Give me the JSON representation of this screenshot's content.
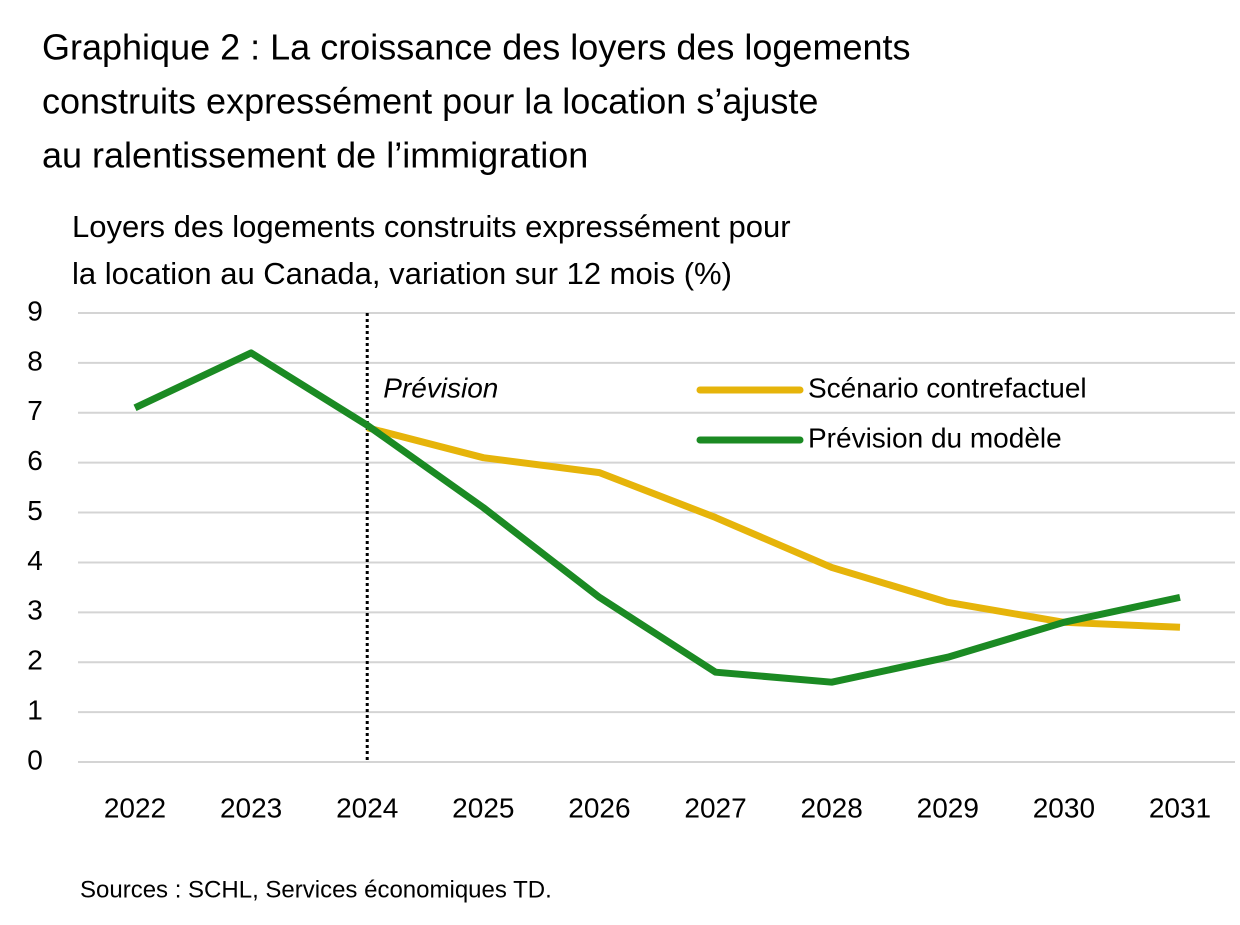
{
  "chart_data": {
    "type": "line",
    "title": [
      "Graphique 2 : La croissance des loyers des logements",
      "construits expressément pour la location s’ajuste",
      "au ralentissement de l’immigration"
    ],
    "y_label": [
      "Loyers des logements construits expressément pour",
      "la location au Canada, variation sur 12 mois (%)"
    ],
    "source": "Sources : SCHL, Services économiques TD.",
    "categories": [
      "2022",
      "2023",
      "2024",
      "2025",
      "2026",
      "2027",
      "2028",
      "2029",
      "2030",
      "2031"
    ],
    "series": [
      {
        "name": "Scénario contrefactuel",
        "color": "#e6b40a",
        "values": [
          null,
          null,
          6.7,
          6.1,
          5.8,
          4.9,
          3.9,
          3.2,
          2.8,
          2.7
        ]
      },
      {
        "name": "Prévision du modèle",
        "color": "#1b8a23",
        "values": [
          7.1,
          8.2,
          6.75,
          5.1,
          3.3,
          1.8,
          1.6,
          2.1,
          2.8,
          3.3
        ]
      }
    ],
    "annotations": [
      {
        "text": "Prévision",
        "x": "2024"
      }
    ],
    "ylim": [
      0,
      9
    ],
    "yticks": [
      0,
      1,
      2,
      3,
      4,
      5,
      6,
      7,
      8,
      9
    ],
    "grid": true,
    "legend": "upper right"
  }
}
